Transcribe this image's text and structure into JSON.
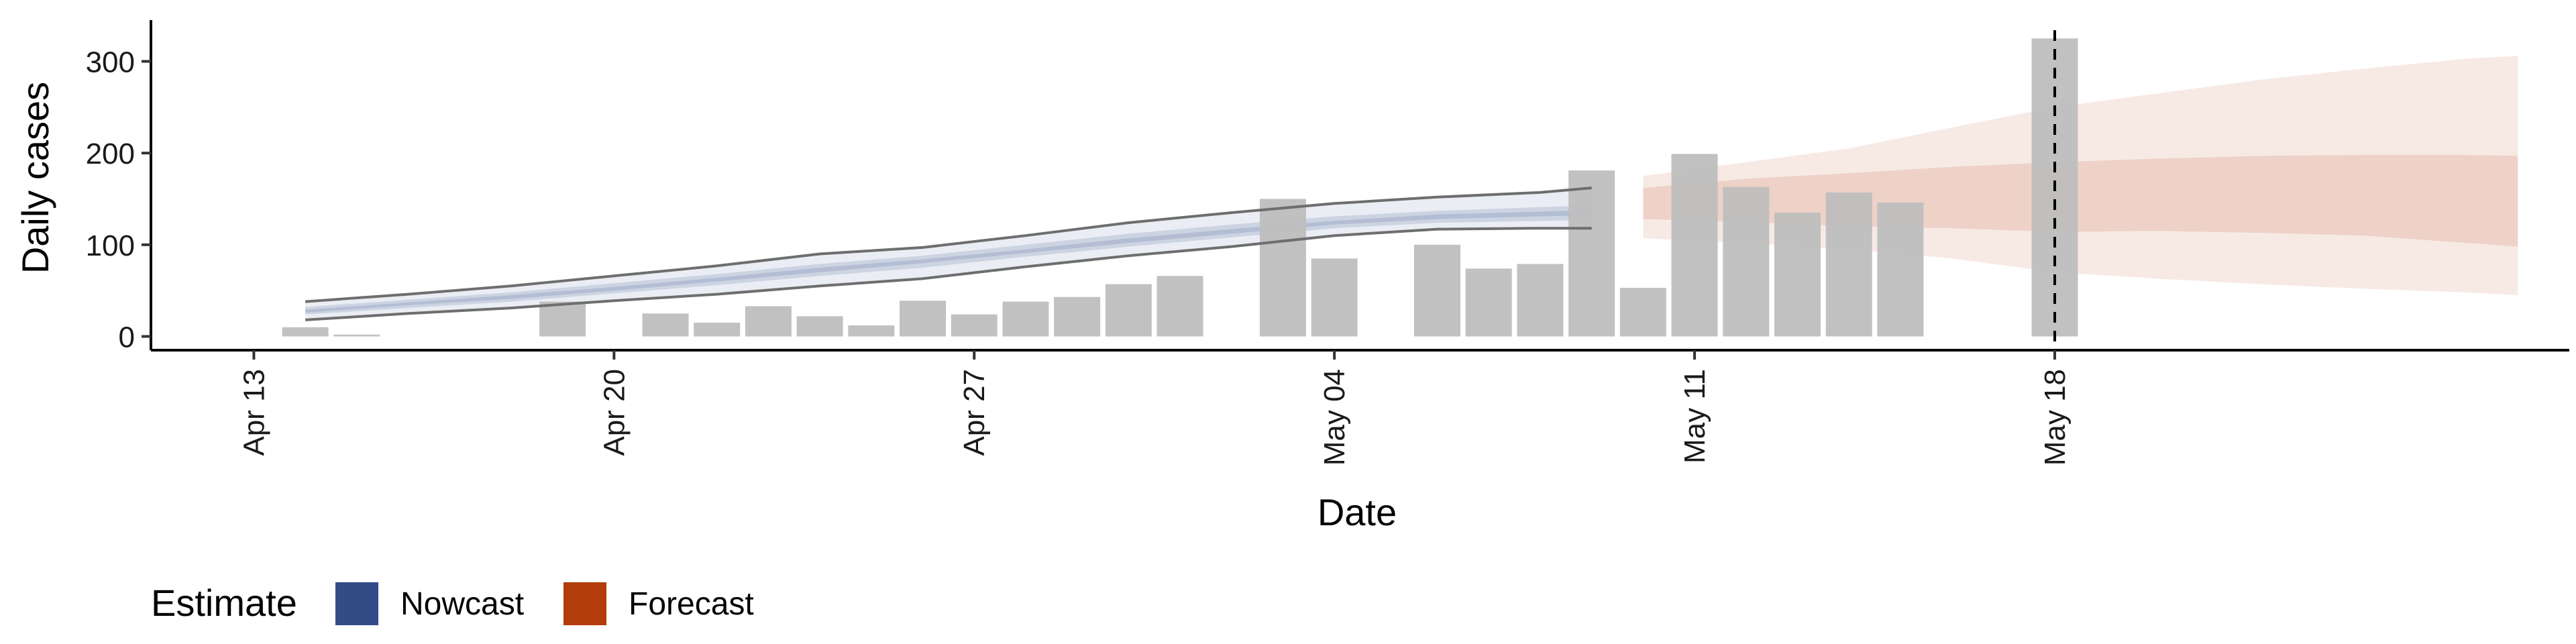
{
  "chart_data": {
    "type": "bar",
    "xlabel": "Date",
    "ylabel": "Daily cases",
    "x_range": [
      "2020-04-11",
      "2020-05-28"
    ],
    "ylim": [
      -15,
      345
    ],
    "yticks": [
      0,
      100,
      200,
      300
    ],
    "xticks": [
      {
        "date": "2020-04-13",
        "label": "Apr 13"
      },
      {
        "date": "2020-04-20",
        "label": "Apr 20"
      },
      {
        "date": "2020-04-27",
        "label": "Apr 27"
      },
      {
        "date": "2020-05-04",
        "label": "May 04"
      },
      {
        "date": "2020-05-11",
        "label": "May 11"
      },
      {
        "date": "2020-05-18",
        "label": "May 18"
      }
    ],
    "bars": [
      {
        "date": "2020-04-14",
        "value": 10
      },
      {
        "date": "2020-04-15",
        "value": 2
      },
      {
        "date": "2020-04-19",
        "value": 38
      },
      {
        "date": "2020-04-21",
        "value": 25
      },
      {
        "date": "2020-04-22",
        "value": 15
      },
      {
        "date": "2020-04-23",
        "value": 33
      },
      {
        "date": "2020-04-24",
        "value": 22
      },
      {
        "date": "2020-04-25",
        "value": 12
      },
      {
        "date": "2020-04-26",
        "value": 39
      },
      {
        "date": "2020-04-27",
        "value": 24
      },
      {
        "date": "2020-04-28",
        "value": 38
      },
      {
        "date": "2020-04-29",
        "value": 43
      },
      {
        "date": "2020-04-30",
        "value": 57
      },
      {
        "date": "2020-05-01",
        "value": 66
      },
      {
        "date": "2020-05-03",
        "value": 150
      },
      {
        "date": "2020-05-04",
        "value": 85
      },
      {
        "date": "2020-05-06",
        "value": 100
      },
      {
        "date": "2020-05-07",
        "value": 74
      },
      {
        "date": "2020-05-08",
        "value": 79
      },
      {
        "date": "2020-05-09",
        "value": 181
      },
      {
        "date": "2020-05-10",
        "value": 53
      },
      {
        "date": "2020-05-11",
        "value": 199
      },
      {
        "date": "2020-05-12",
        "value": 163
      },
      {
        "date": "2020-05-13",
        "value": 135
      },
      {
        "date": "2020-05-14",
        "value": 157
      },
      {
        "date": "2020-05-15",
        "value": 146
      },
      {
        "date": "2020-05-18",
        "value": 325
      }
    ],
    "nowcast": {
      "dates": [
        "2020-04-14",
        "2020-04-16",
        "2020-04-18",
        "2020-04-20",
        "2020-04-22",
        "2020-04-24",
        "2020-04-26",
        "2020-04-28",
        "2020-04-30",
        "2020-05-02",
        "2020-05-04",
        "2020-05-06",
        "2020-05-08",
        "2020-05-09"
      ],
      "lower90": [
        18,
        25,
        31,
        39,
        46,
        55,
        63,
        76,
        88,
        98,
        110,
        117,
        118,
        118
      ],
      "upper90": [
        38,
        46,
        55,
        66,
        77,
        90,
        97,
        110,
        124,
        135,
        145,
        152,
        157,
        162
      ],
      "lower50": [
        24,
        31,
        38,
        47,
        56,
        66,
        75,
        87,
        98,
        108,
        118,
        124,
        126,
        127
      ],
      "upper50": [
        32,
        40,
        48,
        58,
        68,
        79,
        88,
        100,
        112,
        122,
        131,
        137,
        141,
        143
      ],
      "lower20": [
        26,
        34,
        41,
        50,
        60,
        70,
        80,
        91,
        102,
        112,
        122,
        128,
        131,
        132
      ],
      "upper20": [
        29,
        37,
        45,
        54,
        64,
        75,
        84,
        95,
        107,
        117,
        126,
        133,
        136,
        138
      ]
    },
    "forecast": {
      "dates": [
        "2020-05-10",
        "2020-05-12",
        "2020-05-14",
        "2020-05-16",
        "2020-05-18",
        "2020-05-20",
        "2020-05-22",
        "2020-05-24",
        "2020-05-26",
        "2020-05-27"
      ],
      "lower90": [
        107,
        102,
        95,
        85,
        70,
        63,
        57,
        52,
        48,
        45
      ],
      "upper90": [
        175,
        190,
        205,
        228,
        250,
        265,
        280,
        292,
        303,
        306
      ],
      "lower50": [
        128,
        125,
        120,
        118,
        114,
        115,
        113,
        110,
        102,
        98
      ],
      "upper50": [
        162,
        172,
        178,
        185,
        190,
        194,
        197,
        198,
        198,
        197
      ]
    },
    "vline_date": "2020-05-18",
    "legend": {
      "title": "Estimate",
      "position": "bottom-left",
      "items": [
        {
          "label": "Nowcast",
          "color": "#334B87"
        },
        {
          "label": "Forecast",
          "color": "#B23C0A"
        }
      ]
    },
    "colors": {
      "bar": "#BEBEBE",
      "nowcast_band": "#334B87",
      "nowcast_edge": "#6E6E6E",
      "forecast_band": "#D28C6E"
    }
  }
}
